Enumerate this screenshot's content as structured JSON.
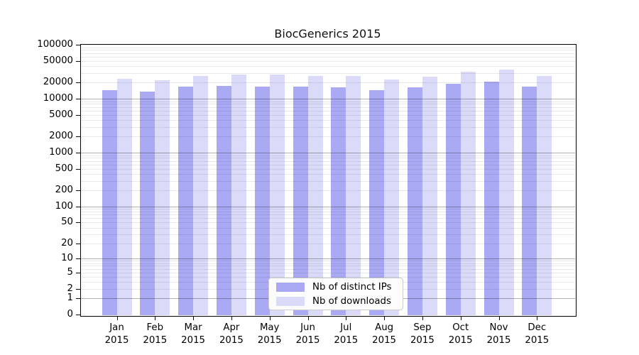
{
  "chart_data": {
    "type": "bar",
    "title": "BiocGenerics 2015",
    "categories": [
      "Jan 2015",
      "Feb 2015",
      "Mar 2015",
      "Apr 2015",
      "May 2015",
      "Jun 2015",
      "Jul 2015",
      "Aug 2015",
      "Sep 2015",
      "Oct 2015",
      "Nov 2015",
      "Dec 2015"
    ],
    "series": [
      {
        "name": "Nb of distinct IPs",
        "color": "#a9a9f4",
        "values": [
          14300,
          13500,
          16900,
          17400,
          16700,
          16600,
          16100,
          14300,
          16100,
          18800,
          20700,
          16900
        ]
      },
      {
        "name": "Nb of downloads",
        "color": "#dbdbf9",
        "values": [
          23400,
          21800,
          26700,
          28100,
          27700,
          26700,
          26600,
          22900,
          25900,
          31800,
          35100,
          26200
        ]
      }
    ],
    "xlabel": "",
    "ylabel": "",
    "yscale": "log1p",
    "ylim": [
      0,
      100000
    ],
    "yticks": [
      0,
      1,
      2,
      5,
      10,
      20,
      50,
      100,
      200,
      500,
      1000,
      2000,
      5000,
      10000,
      20000,
      50000,
      100000
    ],
    "grid": true,
    "grid_minor": true,
    "legend_position": "bottom-center",
    "colors": {
      "grid_major": "#b3b3b3",
      "grid_minor": "#ebebeb",
      "frame": "#000000",
      "background": "#ffffff",
      "text": "#000000"
    }
  }
}
